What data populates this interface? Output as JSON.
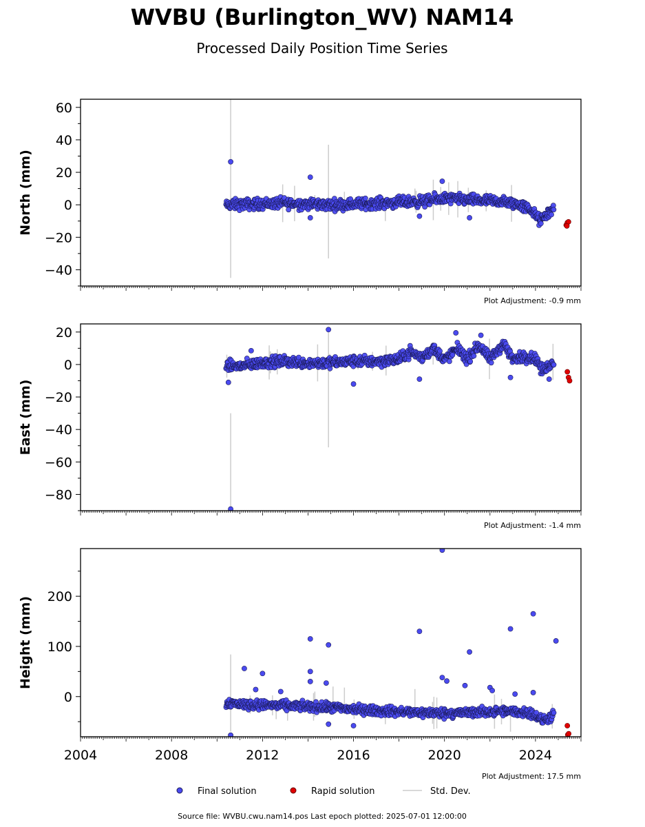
{
  "header": {
    "title": "WVBU (Burlington_WV) NAM14",
    "subtitle": "Processed Daily Position Time Series"
  },
  "legend": {
    "final_label": "Final solution",
    "rapid_label": "Rapid solution",
    "stddev_label": "Std. Dev."
  },
  "footer": {
    "source": "Source file: WVBU.cwu.nam14.pos  Last epoch plotted: 2025-07-01 12:00:00"
  },
  "colors": {
    "final": "#4a4af0",
    "final_edge": "#1a1a55",
    "rapid": "#e00000",
    "stddev": "#cccccc"
  },
  "chart_data": [
    {
      "type": "scatter",
      "ylabel": "North (mm)",
      "adjustment": "Plot Adjustment: -0.9 mm",
      "xlim": [
        2004.0,
        2026.0
      ],
      "ylim": [
        -50,
        65
      ],
      "yticks": [
        -40,
        -20,
        0,
        20,
        40,
        60
      ],
      "trend": [
        [
          2010.4,
          0
        ],
        [
          2013,
          1
        ],
        [
          2015,
          0
        ],
        [
          2017,
          1
        ],
        [
          2019,
          2
        ],
        [
          2020,
          4
        ],
        [
          2021,
          3
        ],
        [
          2022.5,
          2
        ],
        [
          2023.3,
          0
        ],
        [
          2023.8,
          -3
        ],
        [
          2024.2,
          -10
        ],
        [
          2024.5,
          -6
        ],
        [
          2024.8,
          -2
        ]
      ],
      "trend_spread": 2.5,
      "outliers": [
        [
          2010.6,
          26.5
        ],
        [
          2014.1,
          17
        ],
        [
          2014.1,
          -8
        ],
        [
          2019.9,
          14.5
        ],
        [
          2021.1,
          -8
        ],
        [
          2018.9,
          -7
        ]
      ],
      "rapid": [
        [
          2025.35,
          -12.5
        ],
        [
          2025.4,
          -11
        ],
        [
          2025.45,
          -10.5
        ],
        [
          2025.38,
          -13
        ]
      ],
      "stddev_bars": [
        [
          2010.6,
          -45,
          65
        ],
        [
          2014.9,
          -33,
          37
        ],
        [
          2015.6,
          -5,
          8
        ],
        [
          2017.4,
          -10,
          5
        ],
        [
          2018.7,
          -3,
          10
        ],
        [
          2014.3,
          -3,
          6
        ]
      ]
    },
    {
      "type": "scatter",
      "ylabel": "East (mm)",
      "adjustment": "Plot Adjustment: -1.4 mm",
      "xlim": [
        2004.0,
        2026.0
      ],
      "ylim": [
        -90,
        25
      ],
      "yticks": [
        -80,
        -60,
        -40,
        -20,
        0,
        20
      ],
      "trend": [
        [
          2010.4,
          -1
        ],
        [
          2011,
          -1
        ],
        [
          2012,
          1
        ],
        [
          2013,
          2
        ],
        [
          2014,
          1
        ],
        [
          2015,
          1
        ],
        [
          2016,
          2
        ],
        [
          2017,
          2
        ],
        [
          2018,
          3
        ],
        [
          2018.5,
          8
        ],
        [
          2019,
          4
        ],
        [
          2019.5,
          10
        ],
        [
          2020,
          3
        ],
        [
          2020.6,
          10
        ],
        [
          2021,
          3
        ],
        [
          2021.5,
          12
        ],
        [
          2022,
          3
        ],
        [
          2022.6,
          13
        ],
        [
          2023,
          3
        ],
        [
          2023.5,
          5
        ],
        [
          2024,
          4
        ],
        [
          2024.3,
          -4
        ],
        [
          2024.8,
          2
        ]
      ],
      "trend_spread": 2.5,
      "outliers": [
        [
          2010.5,
          -11
        ],
        [
          2010.6,
          -89
        ],
        [
          2014.9,
          21.5
        ],
        [
          2016,
          -12
        ],
        [
          2020.5,
          19.5
        ],
        [
          2021.6,
          18
        ],
        [
          2022.9,
          -8
        ],
        [
          2024.6,
          -9
        ],
        [
          2011.5,
          8.5
        ],
        [
          2018.9,
          -9
        ]
      ],
      "rapid": [
        [
          2025.4,
          -4.5
        ],
        [
          2025.45,
          -8
        ],
        [
          2025.5,
          -10
        ]
      ],
      "stddev_bars": [
        [
          2010.6,
          -89,
          -30
        ],
        [
          2014.9,
          -51,
          21
        ],
        [
          2016.2,
          -3,
          5
        ],
        [
          2019.5,
          0,
          8
        ]
      ]
    },
    {
      "type": "scatter",
      "ylabel": "Height (mm)",
      "adjustment": "Plot Adjustment: 17.5 mm",
      "xlim": [
        2004.0,
        2026.0
      ],
      "ylim": [
        -80,
        295
      ],
      "yticks": [
        0,
        100,
        200
      ],
      "xticks": [
        "2004",
        "2008",
        "2012",
        "2016",
        "2020",
        "2024"
      ],
      "trend": [
        [
          2010.4,
          -12
        ],
        [
          2011,
          -15
        ],
        [
          2012,
          -17
        ],
        [
          2013,
          -18
        ],
        [
          2014,
          -20
        ],
        [
          2015,
          -22
        ],
        [
          2016,
          -25
        ],
        [
          2017,
          -28
        ],
        [
          2018,
          -30
        ],
        [
          2019,
          -32
        ],
        [
          2020,
          -33
        ],
        [
          2021,
          -32
        ],
        [
          2022,
          -30
        ],
        [
          2023,
          -30
        ],
        [
          2023.8,
          -32
        ],
        [
          2024.3,
          -48
        ],
        [
          2024.8,
          -38
        ]
      ],
      "trend_spread": 7,
      "outliers": [
        [
          2010.6,
          -77
        ],
        [
          2011.2,
          56
        ],
        [
          2012,
          46
        ],
        [
          2014.1,
          115
        ],
        [
          2014.1,
          50
        ],
        [
          2014.1,
          30
        ],
        [
          2014.9,
          103
        ],
        [
          2014.8,
          27
        ],
        [
          2014.9,
          -55
        ],
        [
          2016,
          -58
        ],
        [
          2018.9,
          130
        ],
        [
          2019.9,
          292
        ],
        [
          2019.9,
          38
        ],
        [
          2020.1,
          31
        ],
        [
          2020.9,
          22
        ],
        [
          2021.1,
          89
        ],
        [
          2022,
          18
        ],
        [
          2022.9,
          135
        ],
        [
          2023.1,
          5
        ],
        [
          2023.9,
          165
        ],
        [
          2023.9,
          8
        ],
        [
          2024.9,
          111
        ],
        [
          2022.1,
          12
        ],
        [
          2012.8,
          10
        ],
        [
          2011.7,
          14
        ]
      ],
      "rapid": [
        [
          2025.4,
          -58
        ],
        [
          2025.42,
          -76
        ],
        [
          2025.46,
          -74
        ]
      ],
      "stddev_bars": [
        [
          2010.6,
          -70,
          84
        ],
        [
          2014.3,
          -40,
          10
        ],
        [
          2015.1,
          -30,
          20
        ],
        [
          2015.6,
          -35,
          18
        ],
        [
          2012.6,
          -45,
          -10
        ],
        [
          2013.1,
          -48,
          -20
        ],
        [
          2017.4,
          -55,
          -15
        ],
        [
          2018.7,
          -40,
          15
        ],
        [
          2022.9,
          -70,
          -20
        ]
      ]
    }
  ]
}
